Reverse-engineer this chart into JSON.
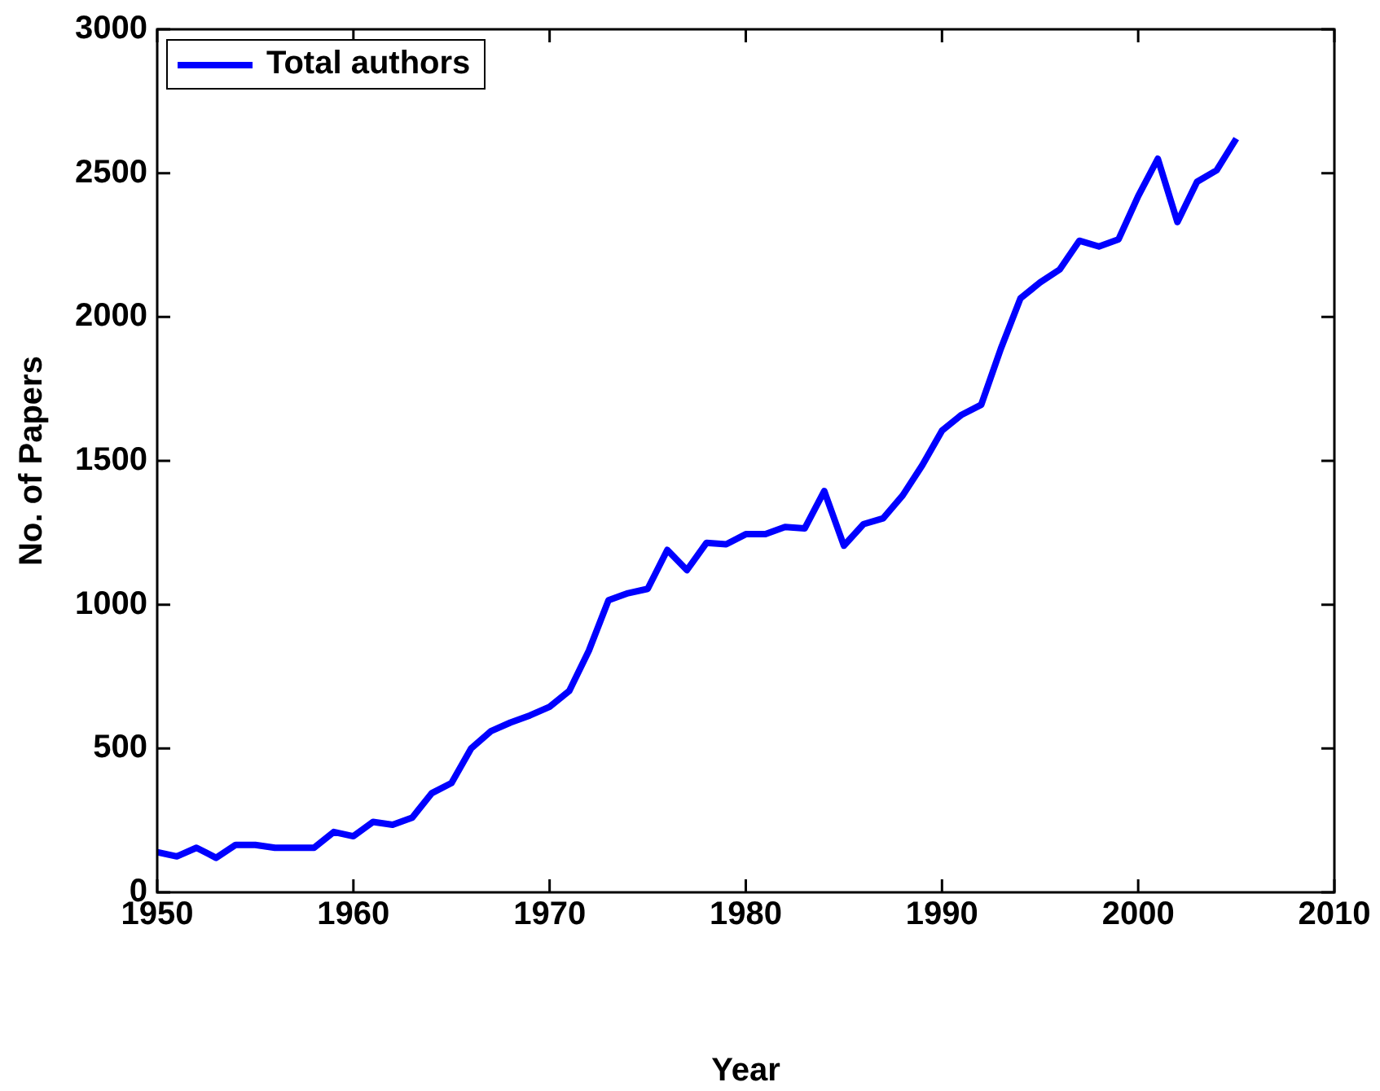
{
  "chart_data": {
    "type": "line",
    "xlabel": "Year",
    "ylabel": "No. of Papers",
    "x": [
      1950,
      1951,
      1952,
      1953,
      1954,
      1955,
      1956,
      1957,
      1958,
      1959,
      1960,
      1961,
      1962,
      1963,
      1964,
      1965,
      1966,
      1967,
      1968,
      1969,
      1970,
      1971,
      1972,
      1973,
      1974,
      1975,
      1976,
      1977,
      1978,
      1979,
      1980,
      1981,
      1982,
      1983,
      1984,
      1985,
      1986,
      1987,
      1988,
      1989,
      1990,
      1991,
      1992,
      1993,
      1994,
      1995,
      1996,
      1997,
      1998,
      1999,
      2000,
      2001,
      2002,
      2003,
      2004,
      2005
    ],
    "series": [
      {
        "name": "Total authors",
        "color": "#0000ff",
        "values": [
          140,
          125,
          155,
          120,
          165,
          165,
          155,
          155,
          155,
          210,
          195,
          245,
          235,
          260,
          345,
          380,
          500,
          560,
          590,
          615,
          645,
          700,
          840,
          1015,
          1040,
          1055,
          1190,
          1120,
          1215,
          1210,
          1245,
          1245,
          1270,
          1265,
          1395,
          1205,
          1280,
          1300,
          1380,
          1485,
          1605,
          1660,
          1695,
          1890,
          2065,
          2120,
          2165,
          2265,
          2245,
          2270,
          2420,
          2550,
          2330,
          2470,
          2510,
          2620
        ]
      }
    ],
    "xlim": [
      1950,
      2010
    ],
    "xticks": [
      1950,
      1960,
      1970,
      1980,
      1990,
      2000,
      2010
    ],
    "ylim": [
      0,
      3000
    ],
    "yticks": [
      0,
      500,
      1000,
      1500,
      2000,
      2500,
      3000
    ],
    "grid": false,
    "legend": "top left",
    "marker": "none",
    "line_style": "solid"
  }
}
